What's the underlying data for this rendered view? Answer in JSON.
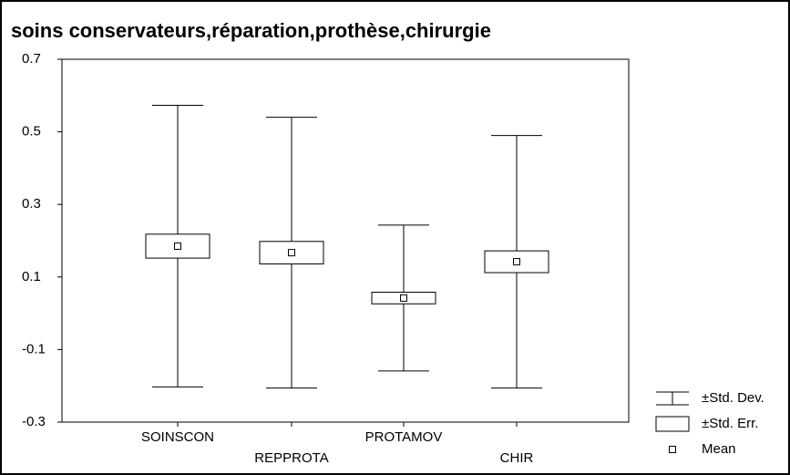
{
  "chart_data": {
    "type": "box",
    "title": "soins conservateurs,réparation,prothèse,chirurgie",
    "categories": [
      "SOINSCON",
      "REPPROTA",
      "PROTAMOV",
      "CHIR"
    ],
    "series": {
      "mean": [
        0.185,
        0.167,
        0.042,
        0.142
      ],
      "se": [
        0.033,
        0.031,
        0.016,
        0.03
      ],
      "sd": [
        0.388,
        0.373,
        0.201,
        0.348
      ]
    },
    "legend": [
      "±Std. Dev.",
      "±Std. Err.",
      "Mean"
    ],
    "ylim": [
      -0.3,
      0.7
    ],
    "yticks": [
      0.7,
      0.5,
      0.3,
      0.1,
      -0.1,
      -0.3
    ],
    "grid": false,
    "color": "#000000"
  }
}
